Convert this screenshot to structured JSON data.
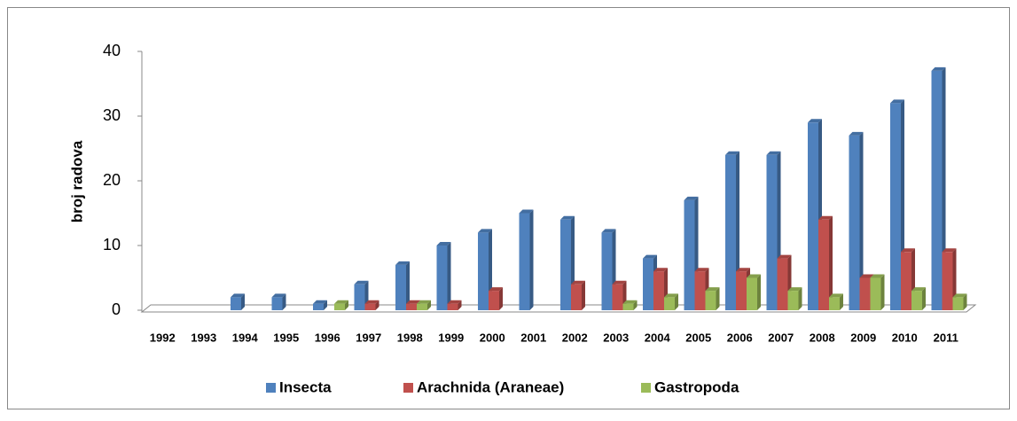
{
  "chart_data": {
    "type": "bar3d",
    "y_label": "broj radova",
    "categories": [
      "1992",
      "1993",
      "1994",
      "1995",
      "1996",
      "1997",
      "1998",
      "1999",
      "2000",
      "2001",
      "2002",
      "2003",
      "2004",
      "2005",
      "2006",
      "2007",
      "2008",
      "2009",
      "2010",
      "2011"
    ],
    "series": [
      {
        "name": "Insecta",
        "color": "#4f81bd",
        "values": [
          0,
          0,
          2,
          2,
          1,
          4,
          7,
          10,
          12,
          15,
          14,
          12,
          8,
          17,
          24,
          24,
          29,
          27,
          32,
          37
        ]
      },
      {
        "name": "Arachnida (Araneae)",
        "color": "#c0504d",
        "values": [
          0,
          0,
          0,
          0,
          0,
          1,
          1,
          1,
          3,
          0,
          4,
          4,
          6,
          6,
          6,
          8,
          14,
          5,
          9,
          9
        ]
      },
      {
        "name": "Gastropoda",
        "color": "#9bbb59",
        "values": [
          0,
          0,
          0,
          0,
          1,
          0,
          1,
          0,
          0,
          0,
          0,
          1,
          2,
          3,
          5,
          3,
          2,
          5,
          3,
          2
        ]
      }
    ],
    "ylim": [
      0,
      40
    ],
    "yticks": [
      0,
      10,
      20,
      30,
      40
    ],
    "legend": "bottom"
  }
}
